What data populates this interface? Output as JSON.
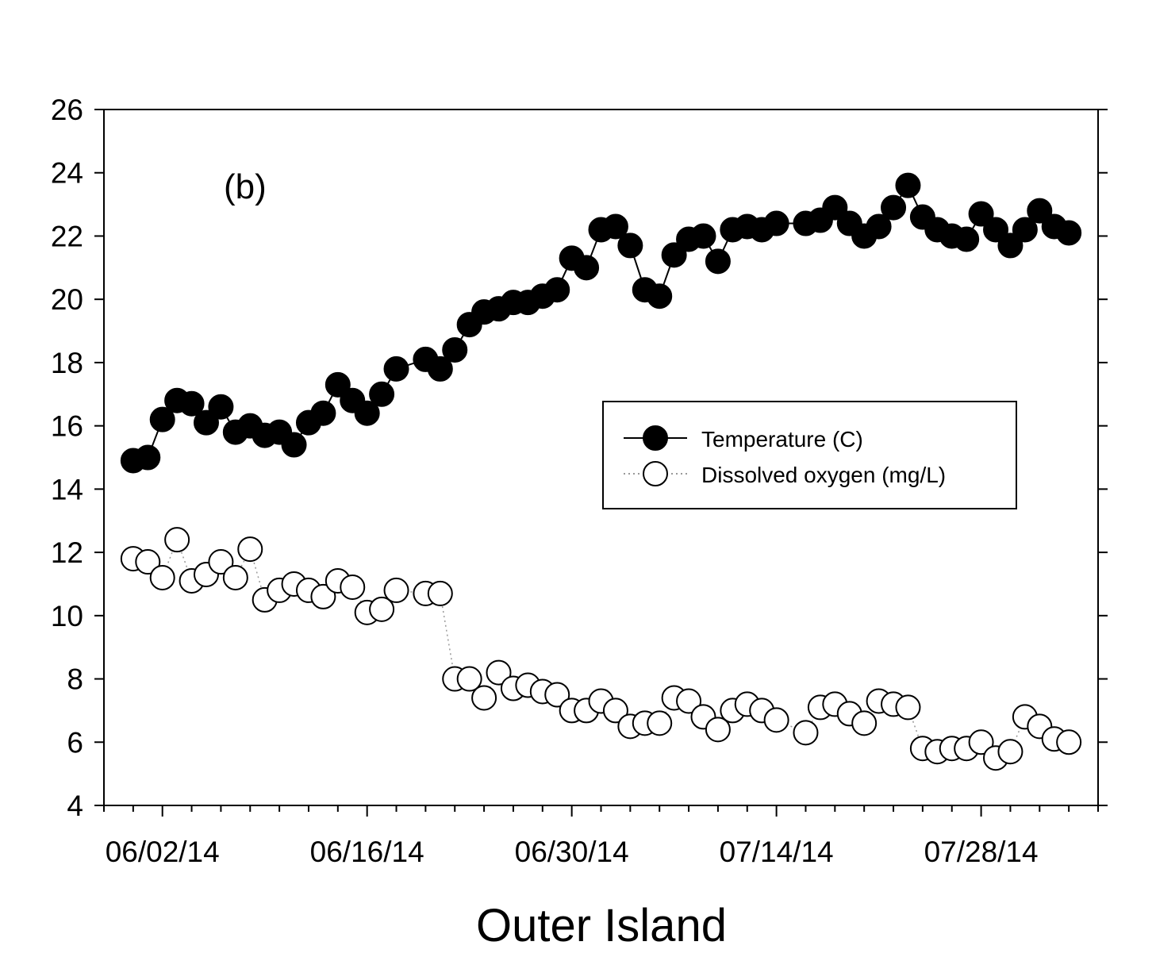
{
  "chart_data": {
    "type": "line",
    "panel_label": "(b)",
    "xlabel": "Outer Island",
    "ylabel": "",
    "ylim": [
      4,
      26
    ],
    "y_ticks": [
      4,
      6,
      8,
      10,
      12,
      14,
      16,
      18,
      20,
      22,
      24,
      26
    ],
    "x_range": [
      "2014-05-29",
      "2014-08-05"
    ],
    "x_tick_dates": [
      "2014-06-02",
      "2014-06-16",
      "2014-06-30",
      "2014-07-14",
      "2014-07-28"
    ],
    "x_tick_labels": [
      "06/02/14",
      "06/16/14",
      "06/30/14",
      "07/14/14",
      "07/28/14"
    ],
    "minor_tick_interval_days": 2,
    "legend_position": "center-right",
    "colors": {
      "temperature": "#000000",
      "oxygen_fill": "#ffffff",
      "oxygen_line": "#999999"
    },
    "series": [
      {
        "name": "Temperature (C)",
        "marker": "filled-circle",
        "line": "solid",
        "x": [
          "2014-05-31",
          "2014-06-01",
          "2014-06-02",
          "2014-06-03",
          "2014-06-04",
          "2014-06-05",
          "2014-06-06",
          "2014-06-07",
          "2014-06-08",
          "2014-06-09",
          "2014-06-10",
          "2014-06-11",
          "2014-06-12",
          "2014-06-13",
          "2014-06-14",
          "2014-06-15",
          "2014-06-16",
          "2014-06-17",
          "2014-06-18",
          "2014-06-20",
          "2014-06-21",
          "2014-06-22",
          "2014-06-23",
          "2014-06-24",
          "2014-06-25",
          "2014-06-26",
          "2014-06-27",
          "2014-06-28",
          "2014-06-29",
          "2014-06-30",
          "2014-07-01",
          "2014-07-02",
          "2014-07-03",
          "2014-07-04",
          "2014-07-05",
          "2014-07-06",
          "2014-07-07",
          "2014-07-08",
          "2014-07-09",
          "2014-07-10",
          "2014-07-11",
          "2014-07-12",
          "2014-07-13",
          "2014-07-14",
          "2014-07-16",
          "2014-07-17",
          "2014-07-18",
          "2014-07-19",
          "2014-07-20",
          "2014-07-21",
          "2014-07-22",
          "2014-07-23",
          "2014-07-24",
          "2014-07-25",
          "2014-07-26",
          "2014-07-27",
          "2014-07-28",
          "2014-07-29",
          "2014-07-30",
          "2014-07-31",
          "2014-08-01",
          "2014-08-02",
          "2014-08-03"
        ],
        "values": [
          14.9,
          15.0,
          16.2,
          16.8,
          16.7,
          16.1,
          16.6,
          15.8,
          16.0,
          15.7,
          15.8,
          15.4,
          16.1,
          16.4,
          17.3,
          16.8,
          16.4,
          17.0,
          17.8,
          18.1,
          17.8,
          18.4,
          19.2,
          19.6,
          19.7,
          19.9,
          19.9,
          20.1,
          20.3,
          21.3,
          21.0,
          22.2,
          22.3,
          21.7,
          20.3,
          20.1,
          21.4,
          21.9,
          22.0,
          21.2,
          22.2,
          22.3,
          22.2,
          22.4,
          22.4,
          22.5,
          22.9,
          22.4,
          22.0,
          22.3,
          22.9,
          23.6,
          22.6,
          22.2,
          22.0,
          21.9,
          22.7,
          22.2,
          21.7,
          22.2,
          22.8,
          22.3,
          22.1
        ]
      },
      {
        "name": "Dissolved oxygen (mg/L)",
        "marker": "open-circle",
        "line": "dotted",
        "x": [
          "2014-05-31",
          "2014-06-01",
          "2014-06-02",
          "2014-06-03",
          "2014-06-04",
          "2014-06-05",
          "2014-06-06",
          "2014-06-07",
          "2014-06-08",
          "2014-06-09",
          "2014-06-10",
          "2014-06-11",
          "2014-06-12",
          "2014-06-13",
          "2014-06-14",
          "2014-06-15",
          "2014-06-16",
          "2014-06-17",
          "2014-06-18",
          "2014-06-20",
          "2014-06-21",
          "2014-06-22",
          "2014-06-23",
          "2014-06-24",
          "2014-06-25",
          "2014-06-26",
          "2014-06-27",
          "2014-06-28",
          "2014-06-29",
          "2014-06-30",
          "2014-07-01",
          "2014-07-02",
          "2014-07-03",
          "2014-07-04",
          "2014-07-05",
          "2014-07-06",
          "2014-07-07",
          "2014-07-08",
          "2014-07-09",
          "2014-07-10",
          "2014-07-11",
          "2014-07-12",
          "2014-07-13",
          "2014-07-14",
          "2014-07-16",
          "2014-07-17",
          "2014-07-18",
          "2014-07-19",
          "2014-07-20",
          "2014-07-21",
          "2014-07-22",
          "2014-07-23",
          "2014-07-24",
          "2014-07-25",
          "2014-07-26",
          "2014-07-27",
          "2014-07-28",
          "2014-07-29",
          "2014-07-30",
          "2014-07-31",
          "2014-08-01",
          "2014-08-02",
          "2014-08-03"
        ],
        "values": [
          11.8,
          11.7,
          11.2,
          12.4,
          11.1,
          11.3,
          11.7,
          11.2,
          12.1,
          10.5,
          10.8,
          11.0,
          10.8,
          10.6,
          11.1,
          10.9,
          10.1,
          10.2,
          10.8,
          10.7,
          10.7,
          8.0,
          8.0,
          7.4,
          8.2,
          7.7,
          7.8,
          7.6,
          7.5,
          7.0,
          7.0,
          7.3,
          7.0,
          6.5,
          6.6,
          6.6,
          7.4,
          7.3,
          6.8,
          6.4,
          7.0,
          7.2,
          7.0,
          6.7,
          6.3,
          7.1,
          7.2,
          6.9,
          6.6,
          7.3,
          7.2,
          7.1,
          5.8,
          5.7,
          5.8,
          5.8,
          6.0,
          5.5,
          5.7,
          6.8,
          6.5,
          6.1,
          6.0
        ]
      }
    ]
  }
}
